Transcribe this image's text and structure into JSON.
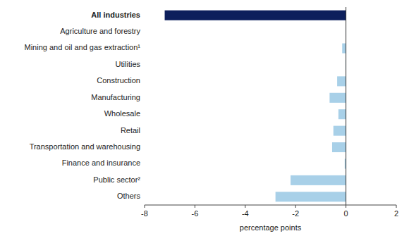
{
  "chart_data": {
    "type": "bar",
    "orientation": "horizontal",
    "categories": [
      "All industries",
      "Agriculture and forestry",
      "Mining and oil and gas extraction¹",
      "Utilities",
      "Construction",
      "Manufacturing",
      "Wholesale",
      "Retail",
      "Transportation and warehousing",
      "Finance and insurance",
      "Public sector²",
      "Others"
    ],
    "values": [
      -7.2,
      -0.01,
      -0.15,
      -0.02,
      -0.35,
      -0.65,
      -0.3,
      -0.5,
      -0.55,
      -0.05,
      -2.2,
      -2.8
    ],
    "colors": [
      "#0d1f5c",
      "#a8d0e8",
      "#a8d0e8",
      "#a8d0e8",
      "#a8d0e8",
      "#a8d0e8",
      "#a8d0e8",
      "#a8d0e8",
      "#a8d0e8",
      "#a8d0e8",
      "#a8d0e8",
      "#a8d0e8"
    ],
    "xlabel": "percentage points",
    "xlim": [
      -8,
      2
    ],
    "xticks": [
      -8,
      -6,
      -4,
      -2,
      0,
      2
    ],
    "grid": false
  }
}
